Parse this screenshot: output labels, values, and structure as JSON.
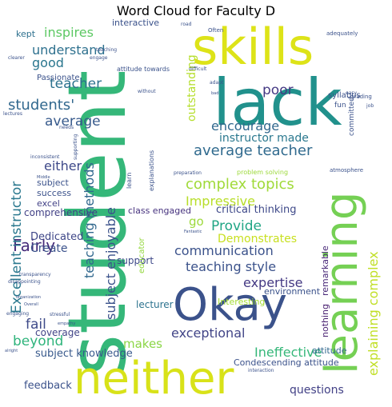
{
  "chart_data": {
    "type": "wordcloud",
    "title": "Word Cloud for Faculty D",
    "words": [
      {
        "text": "student",
        "color": "#35b779"
      },
      {
        "text": "neither",
        "color": "#d8e219"
      },
      {
        "text": "lack",
        "color": "#21918c"
      },
      {
        "text": "skills",
        "color": "#dde318"
      },
      {
        "text": "learning",
        "color": "#75d054"
      },
      {
        "text": "Okay",
        "color": "#3b528b"
      },
      {
        "text": "students'",
        "color": "#31688e"
      },
      {
        "text": "average teacher",
        "color": "#306a8e"
      },
      {
        "text": "complex topics",
        "color": "#a0da39"
      },
      {
        "text": "encourage",
        "color": "#31688e"
      },
      {
        "text": "instructor made",
        "color": "#2a788e"
      },
      {
        "text": "average",
        "color": "#375a8c"
      },
      {
        "text": "teacher",
        "color": "#2c728e"
      },
      {
        "text": "inspires",
        "color": "#5cc863"
      },
      {
        "text": "understand",
        "color": "#2d708e"
      },
      {
        "text": "good",
        "color": "#2a768e"
      },
      {
        "text": "poor",
        "color": "#443983"
      },
      {
        "text": "either",
        "color": "#3e4989"
      },
      {
        "text": "Fairly",
        "color": "#472c7a"
      },
      {
        "text": "beyond",
        "color": "#2fb47c"
      },
      {
        "text": "fail",
        "color": "#3e4a89"
      },
      {
        "text": "Excellent instructor",
        "color": "#2a788e"
      },
      {
        "text": "teaching methods",
        "color": "#31688e"
      },
      {
        "text": "subject enjoyable",
        "color": "#3b528b"
      },
      {
        "text": "Impressive",
        "color": "#b8de29"
      },
      {
        "text": "Provide",
        "color": "#21a685"
      },
      {
        "text": "communication",
        "color": "#3b528b"
      },
      {
        "text": "teaching style",
        "color": "#3b528b"
      },
      {
        "text": "Demonstrates",
        "color": "#c8e020"
      },
      {
        "text": "expertise",
        "color": "#443983"
      },
      {
        "text": "exceptional",
        "color": "#414487"
      },
      {
        "text": "Ineffective",
        "color": "#35b779"
      },
      {
        "text": "explaining complex",
        "color": "#c0df25"
      },
      {
        "text": "outstanding",
        "color": "#b5de2b"
      },
      {
        "text": "questions",
        "color": "#424186"
      },
      {
        "text": "critical thinking",
        "color": "#3e4989"
      },
      {
        "text": "go",
        "color": "#9dd93b"
      },
      {
        "text": "Create",
        "color": "#3b528b"
      },
      {
        "text": "Dedicated",
        "color": "#3f4788"
      },
      {
        "text": "comprehensive",
        "color": "#424186"
      },
      {
        "text": "subject knowledge",
        "color": "#38598c"
      },
      {
        "text": "makes",
        "color": "#8bd646"
      },
      {
        "text": "coverage",
        "color": "#414487"
      },
      {
        "text": "feedback",
        "color": "#3b528b"
      },
      {
        "text": "remarkable",
        "color": "#482878"
      },
      {
        "text": "nothing",
        "color": "#481f70"
      },
      {
        "text": "lecturer",
        "color": "#2c728e"
      },
      {
        "text": "Interesting",
        "color": "#a5db36"
      },
      {
        "text": "environment",
        "color": "#3b528b"
      },
      {
        "text": "attitude",
        "color": "#31688e"
      },
      {
        "text": "Condescending attitude",
        "color": "#3b528b"
      },
      {
        "text": "support",
        "color": "#3e4989"
      },
      {
        "text": "class engaged",
        "color": "#46327e"
      },
      {
        "text": "educator",
        "color": "#95d840"
      },
      {
        "text": "Passionate",
        "color": "#3b528b"
      },
      {
        "text": "kept",
        "color": "#2d708e"
      },
      {
        "text": "success",
        "color": "#3b528b"
      },
      {
        "text": "excel",
        "color": "#424186"
      },
      {
        "text": "subject",
        "color": "#3b528b"
      },
      {
        "text": "interactive",
        "color": "#3b528b"
      },
      {
        "text": "attitude towards",
        "color": "#3b528b"
      },
      {
        "text": "syllabus",
        "color": "#3b528b"
      },
      {
        "text": "fun",
        "color": "#3b528b"
      },
      {
        "text": "committed",
        "color": "#3b528b"
      },
      {
        "text": "learn",
        "color": "#3b528b"
      },
      {
        "text": "explanations",
        "color": "#3b528b"
      },
      {
        "text": "problem solving",
        "color": "#9dd93b"
      },
      {
        "text": "grading",
        "color": "#3b528b"
      },
      {
        "text": "atmosphere",
        "color": "#3b528b"
      },
      {
        "text": "adequately",
        "color": "#3b528b"
      },
      {
        "text": "Often",
        "color": "#3b528b"
      },
      {
        "text": "clearer",
        "color": "#3b528b"
      },
      {
        "text": "engage",
        "color": "#3b528b"
      },
      {
        "text": "teaching",
        "color": "#3b528b"
      },
      {
        "text": "difficult",
        "color": "#3b528b"
      },
      {
        "text": "adapt",
        "color": "#3b528b"
      },
      {
        "text": "without",
        "color": "#3b528b"
      },
      {
        "text": "bad",
        "color": "#3b528b"
      },
      {
        "text": "easy",
        "color": "#3b528b"
      },
      {
        "text": "job",
        "color": "#3b528b"
      },
      {
        "text": "inconsistent",
        "color": "#3b528b"
      },
      {
        "text": "lectures",
        "color": "#3b528b"
      },
      {
        "text": "needs",
        "color": "#3b528b"
      },
      {
        "text": "stressful",
        "color": "#3b528b"
      },
      {
        "text": "Middle",
        "color": "#3b528b"
      },
      {
        "text": "preparation",
        "color": "#3b528b"
      },
      {
        "text": "transparency",
        "color": "#3b528b"
      },
      {
        "text": "Fantastic",
        "color": "#3b528b"
      },
      {
        "text": "organization",
        "color": "#3b528b"
      },
      {
        "text": "Overall",
        "color": "#3b528b"
      },
      {
        "text": "disappointing",
        "color": "#3b528b"
      },
      {
        "text": "engaging",
        "color": "#3b528b"
      },
      {
        "text": "empathy",
        "color": "#3b528b"
      },
      {
        "text": "alright",
        "color": "#3b528b"
      },
      {
        "text": "interaction",
        "color": "#3b528b"
      },
      {
        "text": "supporting",
        "color": "#3b528b"
      },
      {
        "text": "road",
        "color": "#3b528b"
      }
    ]
  }
}
